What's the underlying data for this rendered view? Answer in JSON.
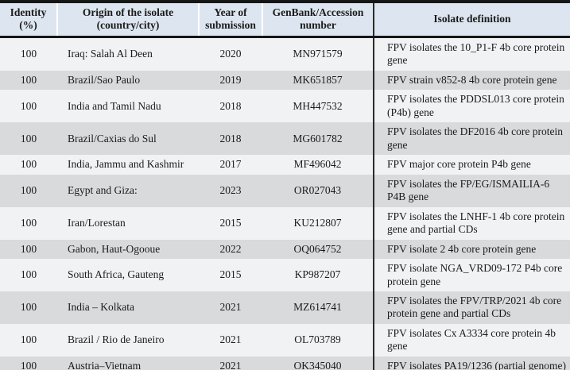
{
  "colors": {
    "header_bg": "#dde6f0",
    "row_light": "#f1f2f4",
    "row_dark": "#d9dadc",
    "rule": "#161616"
  },
  "table": {
    "columns": [
      {
        "line1": "Identity",
        "line2": "(%)"
      },
      {
        "line1": "Origin of the isolate",
        "line2": "(country/city)"
      },
      {
        "line1": "Year of",
        "line2": "submission"
      },
      {
        "line1": "GenBank/Accession",
        "line2": "number"
      },
      {
        "line1": "Isolate definition",
        "line2": ""
      }
    ],
    "rows": [
      {
        "identity": "100",
        "origin": "Iraq: Salah Al Deen",
        "year": "2020",
        "accession": "MN971579",
        "definition": "FPV isolates the 10_P1-F 4b core protein gene"
      },
      {
        "identity": "100",
        "origin": "Brazil/Sao Paulo",
        "year": "2019",
        "accession": "MK651857",
        "definition": "FPV strain v852-8 4b core protein gene"
      },
      {
        "identity": "100",
        "origin": "India and Tamil Nadu",
        "year": "2018",
        "accession": "MH447532",
        "definition": "FPV isolates the PDDSL013 core protein (P4b) gene"
      },
      {
        "identity": "100",
        "origin": "Brazil/Caxias do Sul",
        "year": "2018",
        "accession": "MG601782",
        "definition": "FPV isolates the DF2016 4b core protein gene"
      },
      {
        "identity": "100",
        "origin": "India, Jammu and Kashmir",
        "year": "2017",
        "accession": "MF496042",
        "definition": "FPV major core protein P4b gene"
      },
      {
        "identity": "100",
        "origin": "Egypt and Giza:",
        "year": "2023",
        "accession": "OR027043",
        "definition": "FPV isolates the FP/EG/ISMAILIA-6 P4B gene"
      },
      {
        "identity": "100",
        "origin": "Iran/Lorestan",
        "year": "2015",
        "accession": "KU212807",
        "definition": "FPV isolates the LNHF-1 4b core protein gene and partial CDs"
      },
      {
        "identity": "100",
        "origin": "Gabon, Haut-Ogooue",
        "year": "2022",
        "accession": "OQ064752",
        "definition": "FPV isolate 2 4b core protein gene"
      },
      {
        "identity": "100",
        "origin": "South Africa, Gauteng",
        "year": "2015",
        "accession": "KP987207",
        "definition": "FPV isolate NGA_VRD09-172 P4b core protein gene"
      },
      {
        "identity": "100",
        "origin": "India – Kolkata",
        "year": "2021",
        "accession": "MZ614741",
        "definition": "FPV isolates the FPV/TRP/2021 4b core protein gene and partial CDs"
      },
      {
        "identity": "100",
        "origin": "Brazil / Rio de Janeiro",
        "year": "2021",
        "accession": "OL703789",
        "definition": "FPV isolates Cx A3334 core protein 4b gene"
      },
      {
        "identity": "100",
        "origin": "Austria–Vietnam",
        "year": "2021",
        "accession": "OK345040",
        "definition": "FPV isolates PA19/1236 (partial genome)"
      }
    ]
  }
}
